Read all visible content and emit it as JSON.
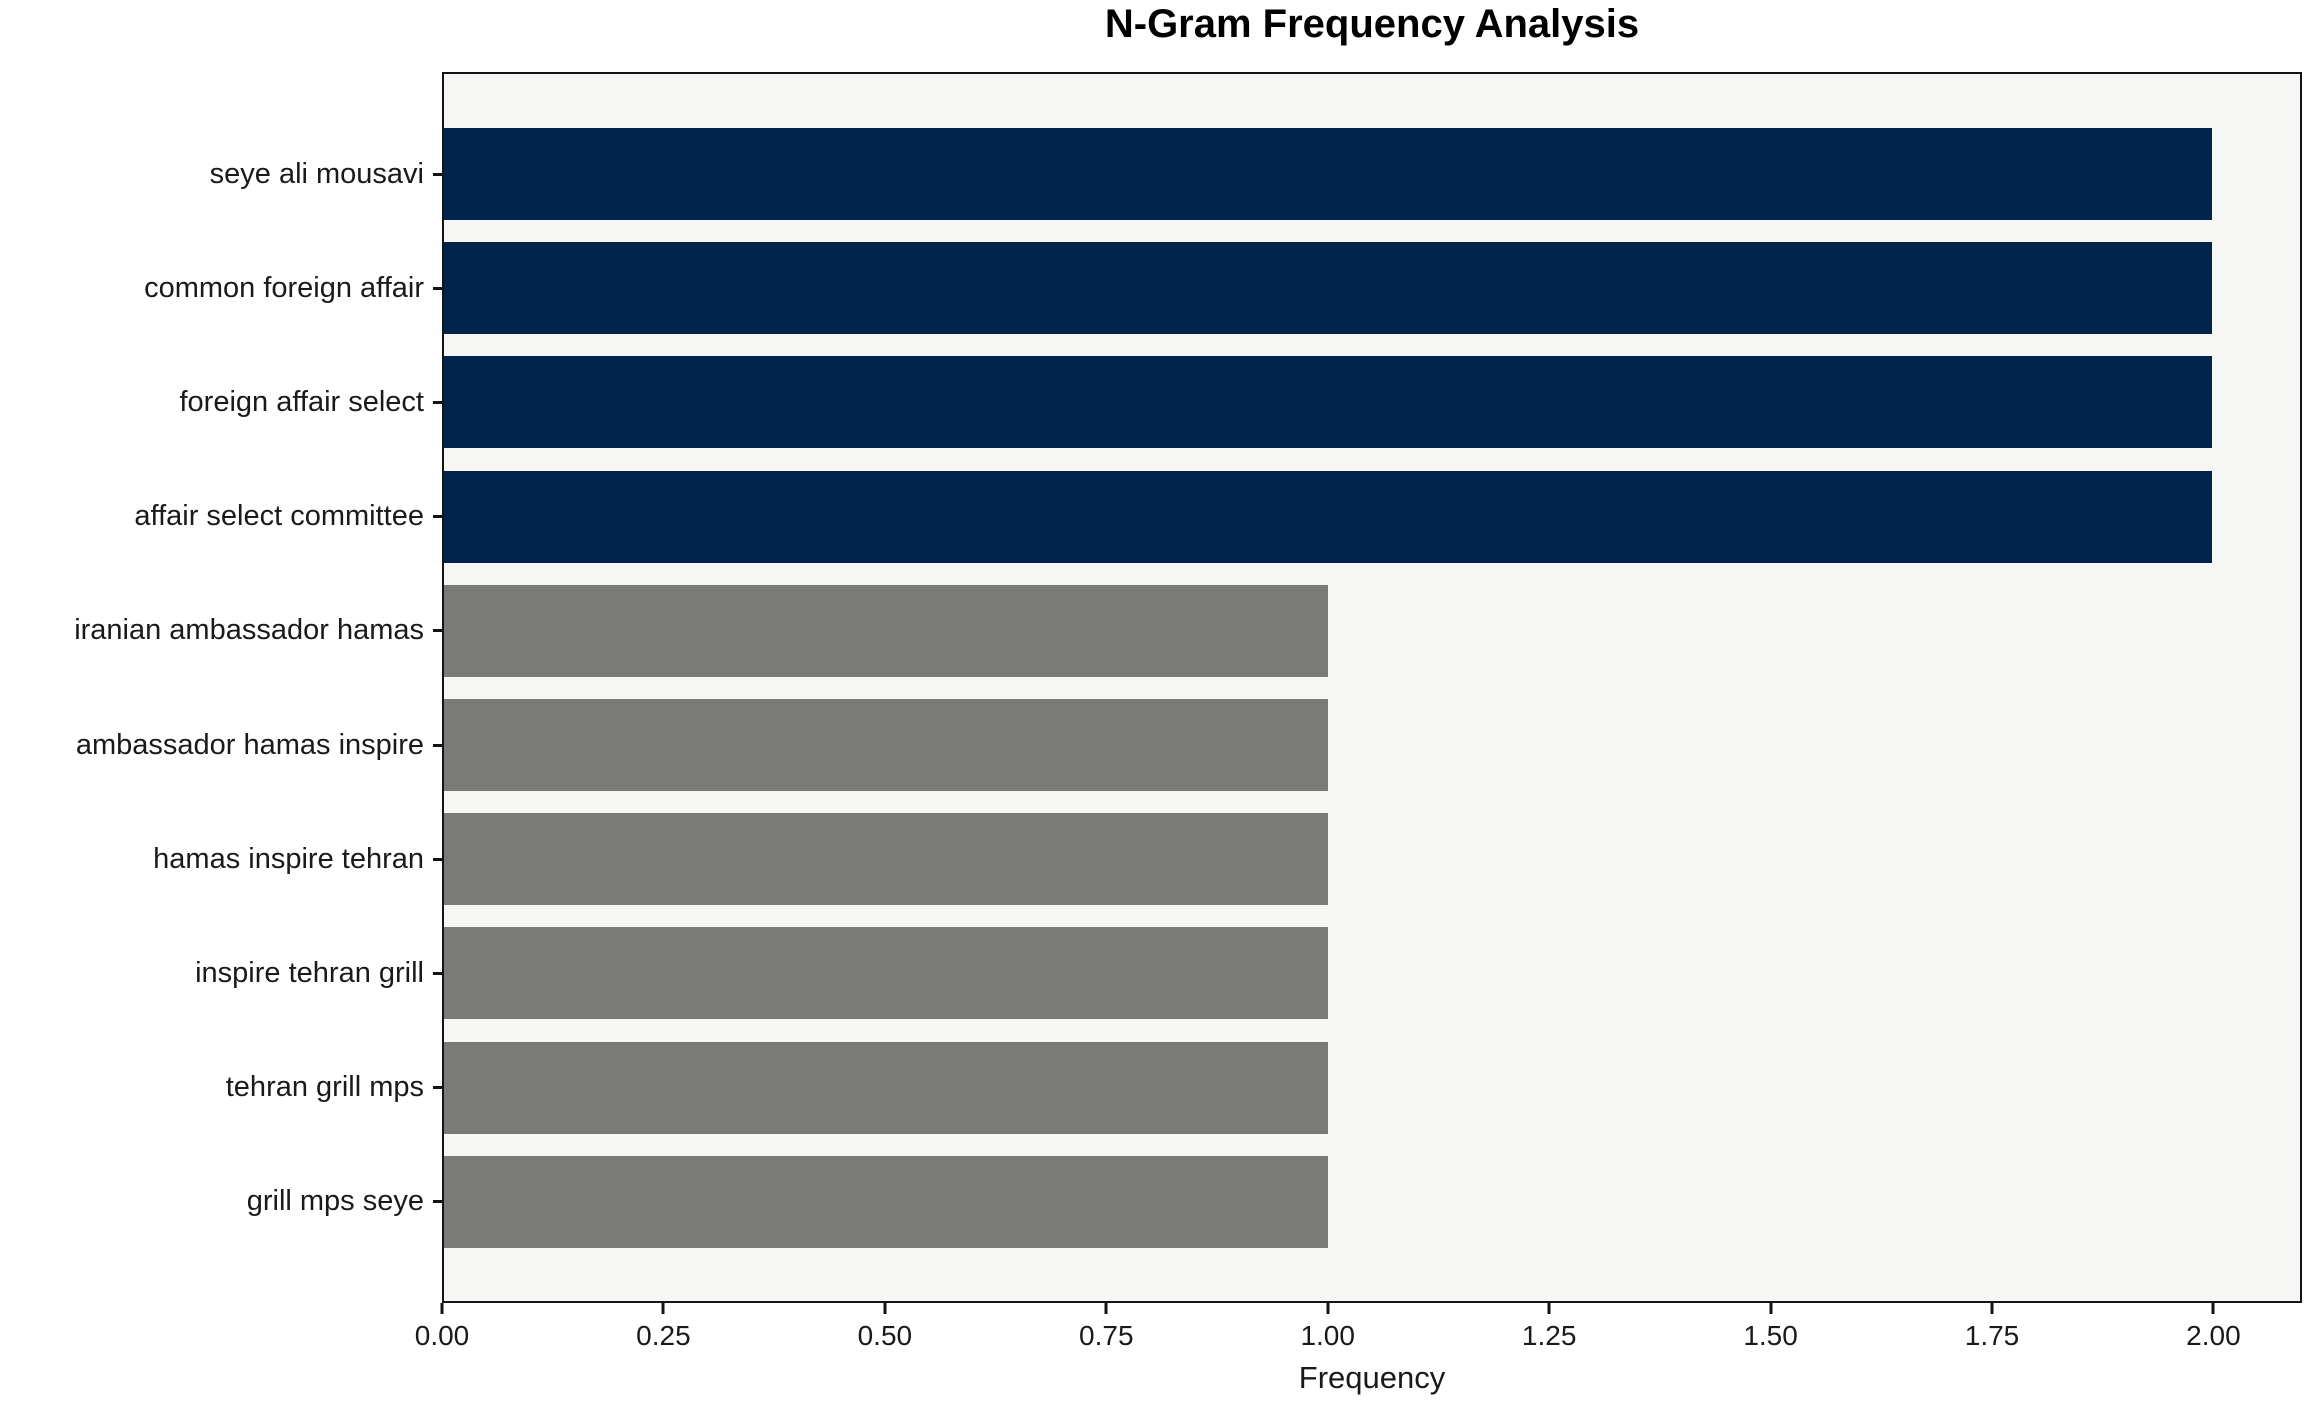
{
  "chart_data": {
    "type": "bar",
    "orientation": "horizontal",
    "title": "N-Gram Frequency Analysis",
    "xlabel": "Frequency",
    "ylabel": "",
    "categories": [
      "seye ali mousavi",
      "common foreign affair",
      "foreign affair select",
      "affair select committee",
      "iranian ambassador hamas",
      "ambassador hamas inspire",
      "hamas inspire tehran",
      "inspire tehran grill",
      "tehran grill mps",
      "grill mps seye"
    ],
    "values": [
      2,
      2,
      2,
      2,
      1,
      1,
      1,
      1,
      1,
      1
    ],
    "bar_colors": [
      "#01244d",
      "#01244d",
      "#01244d",
      "#01244d",
      "#7a7a76",
      "#7a7a76",
      "#7a7a76",
      "#7a7a76",
      "#7a7a76",
      "#7a7a76"
    ],
    "xlim": [
      0,
      2.1
    ],
    "x_ticks": [
      0.0,
      0.25,
      0.5,
      0.75,
      1.0,
      1.25,
      1.5,
      1.75,
      2.0
    ],
    "x_tick_labels": [
      "0.00",
      "0.25",
      "0.50",
      "0.75",
      "1.00",
      "1.25",
      "1.50",
      "1.75",
      "2.00"
    ],
    "grid": false,
    "legend": false,
    "plot_background": "#f6f6f5",
    "spine_color": "#141414"
  }
}
